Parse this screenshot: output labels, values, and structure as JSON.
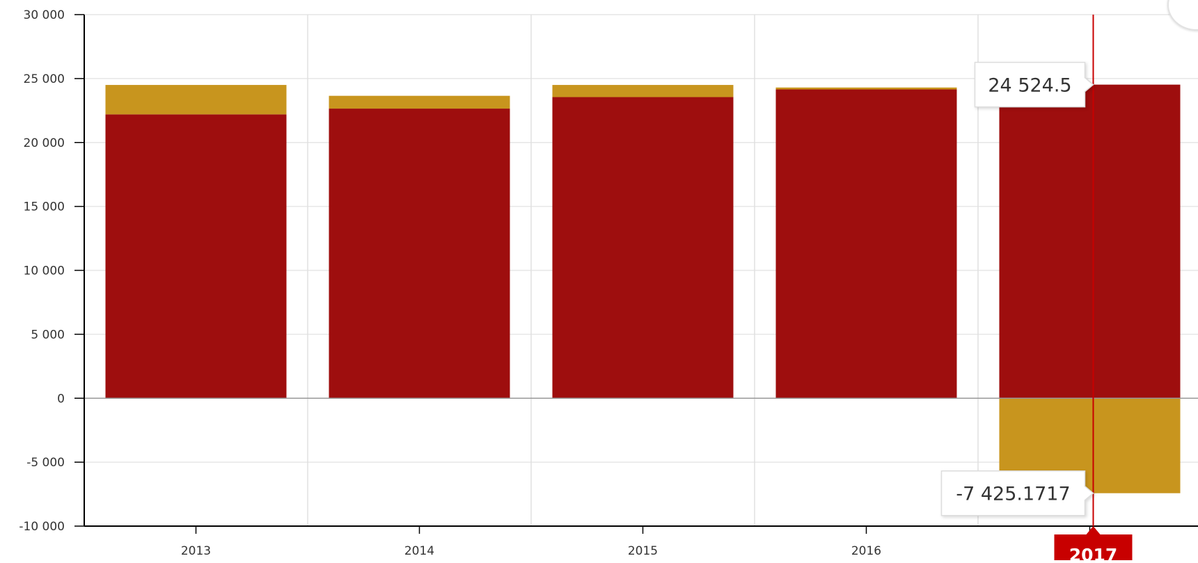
{
  "chart_data": {
    "type": "bar",
    "stacked": true,
    "categories": [
      "2013",
      "2014",
      "2015",
      "2016",
      "2017"
    ],
    "series": [
      {
        "color": "#9e0e0e",
        "values": [
          22200,
          22650,
          23550,
          24150,
          24524.5
        ]
      },
      {
        "color": "#c8951e",
        "values": [
          2300,
          1000,
          950,
          150,
          -7425.1717
        ]
      }
    ],
    "ylim": [
      -10000,
      30000
    ],
    "yticks": [
      30000,
      25000,
      20000,
      15000,
      10000,
      5000,
      0,
      -5000,
      -10000
    ],
    "ytick_labels": [
      "30 000",
      "25 000",
      "20 000",
      "15 000",
      "10 000",
      "5 000",
      "0",
      "-5 000",
      "-10 000"
    ],
    "grid": true,
    "legend": "none",
    "cursor": {
      "category": "2017",
      "label": "2017",
      "color": "#c80000",
      "tooltips": [
        {
          "text": "24 524.5",
          "value": 24524.5
        },
        {
          "text": "-7 425.1717",
          "value": -7425.1717
        }
      ]
    }
  },
  "icons": {
    "corner_button": "download-menu-icon"
  }
}
